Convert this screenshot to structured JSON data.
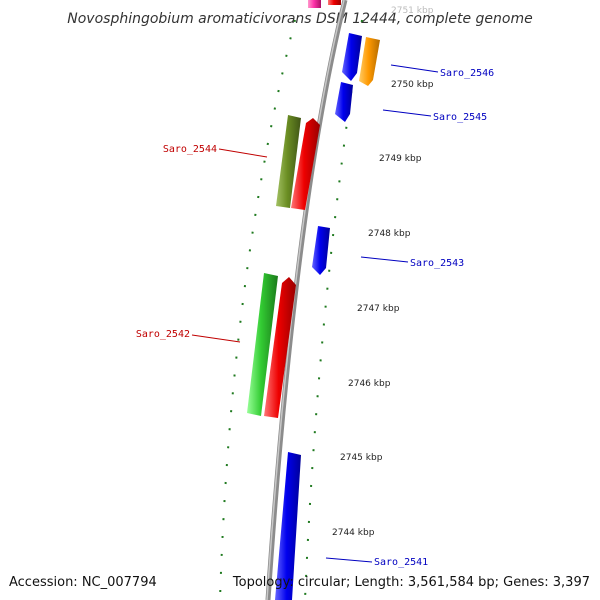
{
  "title": "Novosphingobium aromaticivorans DSM 12444, complete genome",
  "footer": {
    "accession": "Accession: NC_007794",
    "topology": "Topology: circular; Length: 3,561,584 bp; Genes: 3,397"
  },
  "colors": {
    "backbone": "#8c8c8c",
    "tick": "#1f7a1f",
    "label_forward": "#0000c0",
    "label_reverse": "#c00000",
    "cds_blue": "#0000ee",
    "cds_orange": "#ff9900",
    "cds_olive": "#6b8e23",
    "cds_red": "#ee0000",
    "cds_green": "#33cc33",
    "cds_pink": "#ff33aa"
  },
  "scale": {
    "unit": "kbp",
    "ticks": [
      {
        "kbp": 2751,
        "label": "2751 kbp",
        "faded": true
      },
      {
        "kbp": 2750,
        "label": "2750 kbp"
      },
      {
        "kbp": 2749,
        "label": "2749 kbp"
      },
      {
        "kbp": 2748,
        "label": "2748 kbp"
      },
      {
        "kbp": 2747,
        "label": "2747 kbp"
      },
      {
        "kbp": 2746,
        "label": "2746 kbp"
      },
      {
        "kbp": 2745,
        "label": "2745 kbp"
      },
      {
        "kbp": 2744,
        "label": "2744 kbp"
      }
    ]
  },
  "genes": [
    {
      "name": "Saro_2546",
      "strand": "+",
      "labeled": true
    },
    {
      "name": "Saro_2545",
      "strand": "+",
      "labeled": true
    },
    {
      "name": "Saro_2544",
      "strand": "-",
      "labeled": true
    },
    {
      "name": "Saro_2543",
      "strand": "+",
      "labeled": true
    },
    {
      "name": "Saro_2542",
      "strand": "-",
      "labeled": true
    },
    {
      "name": "Saro_2541",
      "strand": "+",
      "labeled": true
    }
  ]
}
